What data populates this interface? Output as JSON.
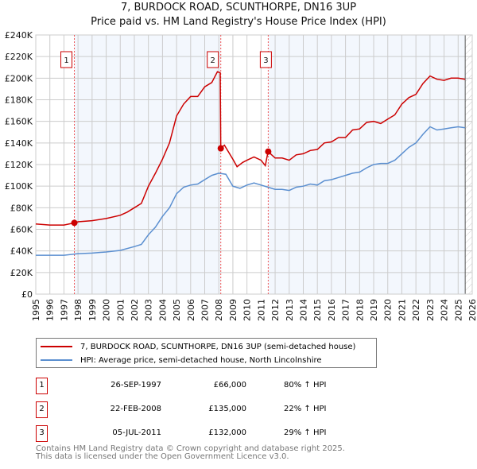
{
  "chart_data": {
    "type": "line",
    "title": "7, BURDOCK ROAD, SCUNTHORPE, DN16 3UP",
    "subtitle": "Price paid vs. HM Land Registry's House Price Index (HPI)",
    "xlim": [
      1995,
      2026
    ],
    "ylim": [
      0,
      240000
    ],
    "y_ticks": [
      "£0",
      "£20K",
      "£40K",
      "£60K",
      "£80K",
      "£100K",
      "£120K",
      "£140K",
      "£160K",
      "£180K",
      "£200K",
      "£220K",
      "£240K"
    ],
    "x_ticks": [
      "1995",
      "1996",
      "1997",
      "1998",
      "1999",
      "2000",
      "2001",
      "2002",
      "2003",
      "2004",
      "2005",
      "2006",
      "2007",
      "2008",
      "2009",
      "2010",
      "2011",
      "2012",
      "2013",
      "2014",
      "2015",
      "2016",
      "2017",
      "2018",
      "2019",
      "2020",
      "2021",
      "2022",
      "2023",
      "2024",
      "2025",
      "2026"
    ],
    "grid": true,
    "series": [
      {
        "name": "7, BURDOCK ROAD, SCUNTHORPE, DN16 3UP (semi-detached house)",
        "color": "#cc0000",
        "x": [
          1995,
          1996,
          1997,
          1997.74,
          1998,
          1999,
          2000,
          2001,
          2001.5,
          2002,
          2002.5,
          2003,
          2003.5,
          2004,
          2004.5,
          2005,
          2005.5,
          2006,
          2006.5,
          2007,
          2007.5,
          2007.9,
          2008.1,
          2008.14,
          2008.4,
          2009,
          2009.3,
          2009.7,
          2010,
          2010.5,
          2011,
          2011.3,
          2011.5,
          2012,
          2012.5,
          2013,
          2013.5,
          2014,
          2014.5,
          2015,
          2015.5,
          2016,
          2016.5,
          2017,
          2017.5,
          2018,
          2018.5,
          2019,
          2019.5,
          2020,
          2020.5,
          2021,
          2021.5,
          2022,
          2022.5,
          2023,
          2023.5,
          2024,
          2024.5,
          2025,
          2025.5
        ],
        "values": [
          65000,
          64000,
          64000,
          66000,
          67000,
          68000,
          70000,
          73000,
          76000,
          80000,
          84000,
          100000,
          112000,
          125000,
          140000,
          165000,
          176000,
          183000,
          183000,
          192000,
          196000,
          206000,
          205000,
          135000,
          138000,
          125000,
          118000,
          122000,
          124000,
          127000,
          124000,
          119000,
          132000,
          126000,
          126000,
          124000,
          129000,
          130000,
          133000,
          134000,
          140000,
          141000,
          145000,
          145000,
          152000,
          153000,
          159000,
          160000,
          158000,
          162000,
          166000,
          176000,
          182000,
          185000,
          195000,
          202000,
          199000,
          198000,
          200000,
          200000,
          199000
        ]
      },
      {
        "name": "HPI: Average price, semi-detached house, North Lincolnshire",
        "color": "#5b8fd0",
        "x": [
          1995,
          1996,
          1997,
          1998,
          1999,
          2000,
          2001,
          2002,
          2002.5,
          2003,
          2003.5,
          2004,
          2004.5,
          2005,
          2005.5,
          2006,
          2006.5,
          2007,
          2007.5,
          2008,
          2008.5,
          2009,
          2009.5,
          2010,
          2010.5,
          2011,
          2011.5,
          2012,
          2012.5,
          2013,
          2013.5,
          2014,
          2014.5,
          2015,
          2015.5,
          2016,
          2016.5,
          2017,
          2017.5,
          2018,
          2018.5,
          2019,
          2019.5,
          2020,
          2020.5,
          2021,
          2021.5,
          2022,
          2022.5,
          2023,
          2023.5,
          2024,
          2024.5,
          2025,
          2025.5
        ],
        "values": [
          36000,
          36000,
          36000,
          37500,
          38000,
          39000,
          40500,
          44000,
          46000,
          55000,
          62000,
          72000,
          80000,
          93000,
          99000,
          101000,
          102000,
          106000,
          110000,
          112000,
          111000,
          100000,
          98000,
          101000,
          103000,
          101000,
          99000,
          97000,
          97000,
          96000,
          99000,
          100000,
          102000,
          101000,
          105000,
          106000,
          108000,
          110000,
          112000,
          113000,
          117000,
          120000,
          121000,
          121000,
          124000,
          130000,
          136000,
          140000,
          148000,
          155000,
          152000,
          153000,
          154000,
          155000,
          154000
        ]
      }
    ],
    "sales": [
      {
        "label": "1",
        "x": 1997.74,
        "value": 66000,
        "date": "26-SEP-1997",
        "price": "£66,000",
        "hpi": "80% ↑ HPI"
      },
      {
        "label": "2",
        "x": 2008.14,
        "value": 135000,
        "date": "22-FEB-2008",
        "price": "£135,000",
        "hpi": "22% ↑ HPI"
      },
      {
        "label": "3",
        "x": 2011.51,
        "value": 132000,
        "date": "05-JUL-2011",
        "price": "£132,000",
        "hpi": "29% ↑ HPI"
      }
    ],
    "data_end": 2025.5,
    "legend_position": "below"
  },
  "footer": {
    "line1": "Contains HM Land Registry data © Crown copyright and database right 2025.",
    "line2": "This data is licensed under the Open Government Licence v3.0."
  }
}
